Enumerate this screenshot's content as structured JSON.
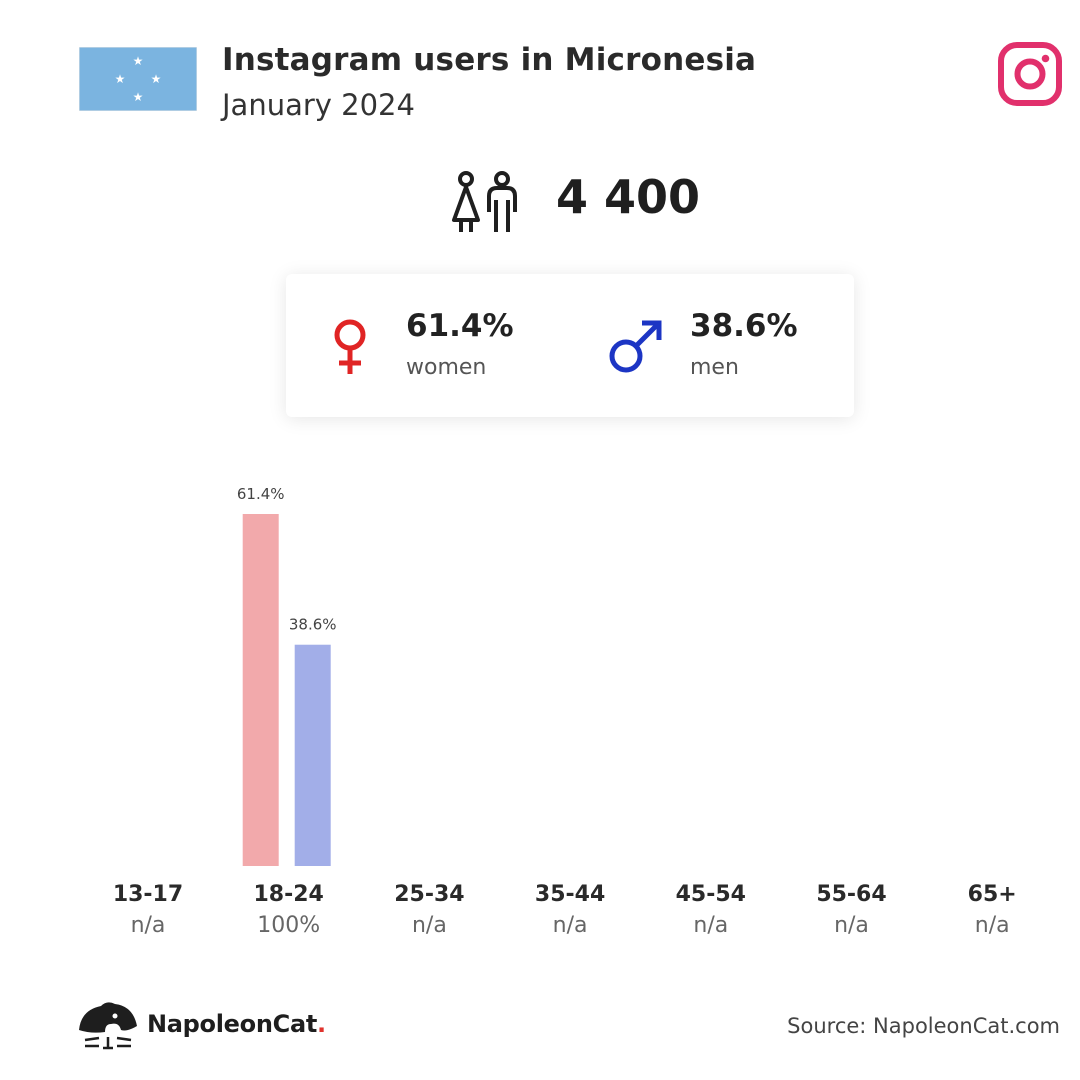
{
  "header": {
    "title": "Instagram users in Micronesia",
    "subtitle": "January 2024",
    "flag_icon": "micronesia-flag-icon",
    "platform_icon": "instagram-icon"
  },
  "summary": {
    "total_users": "4 400",
    "users_icon": "users-icon"
  },
  "gender": {
    "women": {
      "percent": "61.4%",
      "label": "women",
      "icon": "female-icon",
      "color": "#e02424"
    },
    "men": {
      "percent": "38.6%",
      "label": "men",
      "icon": "male-icon",
      "color": "#1c35c4"
    }
  },
  "colors": {
    "women_bar": "#f2a9ab",
    "men_bar": "#a2aee8",
    "instagram": "#e1306c",
    "flag_blue": "#7bb4e0",
    "brand_dot": "#e0332d"
  },
  "chart_data": {
    "type": "bar",
    "categories": [
      "13-17",
      "18-24",
      "25-34",
      "35-44",
      "45-54",
      "55-64",
      "65+"
    ],
    "category_totals": [
      "n/a",
      "100%",
      "n/a",
      "n/a",
      "n/a",
      "n/a",
      "n/a"
    ],
    "series": [
      {
        "name": "women",
        "values": [
          null,
          61.4,
          null,
          null,
          null,
          null,
          null
        ],
        "labels": [
          null,
          "61.4%",
          null,
          null,
          null,
          null,
          null
        ]
      },
      {
        "name": "men",
        "values": [
          null,
          38.6,
          null,
          null,
          null,
          null,
          null
        ],
        "labels": [
          null,
          "38.6%",
          null,
          null,
          null,
          null,
          null
        ]
      }
    ],
    "ylim": [
      0,
      61.4
    ],
    "grid": false
  },
  "footer": {
    "brand_name": "NapoleonCat",
    "brand_dot": ".",
    "brand_icon": "napoleoncat-logo-icon",
    "source": "Source: NapoleonCat.com"
  }
}
